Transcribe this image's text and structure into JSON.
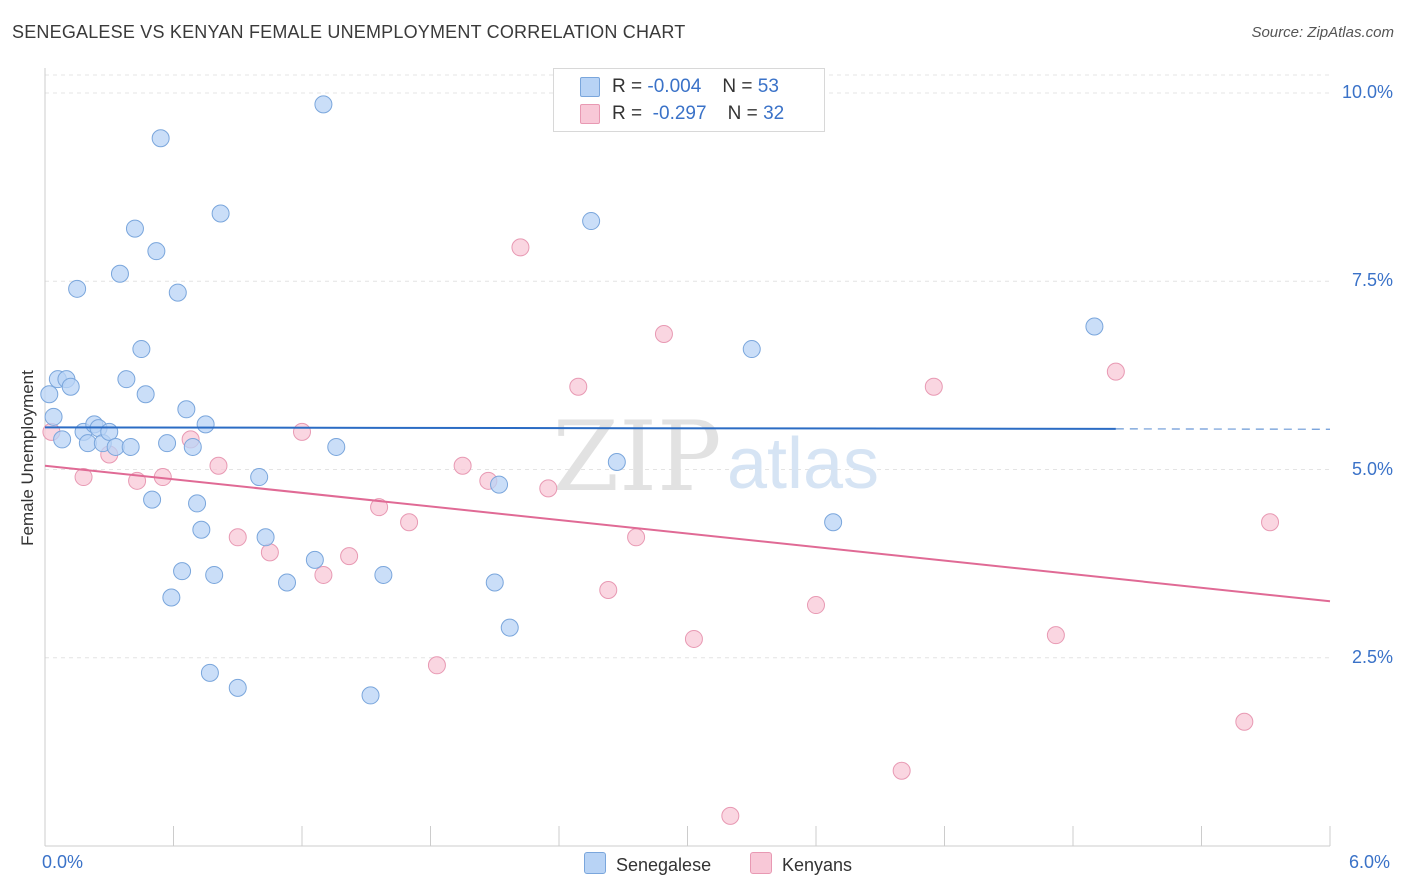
{
  "header": {
    "title": "SENEGALESE VS KENYAN FEMALE UNEMPLOYMENT CORRELATION CHART",
    "source": "Source: ZipAtlas.com"
  },
  "legend": {
    "rows": [
      {
        "r_label": "R =",
        "r_value": "-0.004",
        "n_label": "N =",
        "n_value": "53"
      },
      {
        "r_label": "R =",
        "r_value": "-0.297",
        "n_label": "N =",
        "n_value": "32"
      }
    ]
  },
  "watermark": {
    "zip": "ZIP",
    "atlas": "atlas"
  },
  "colors": {
    "senegalese_fill": "#b8d3f5",
    "senegalese_stroke": "#7aa6dc",
    "senegalese_line": "#2b6cc4",
    "kenyan_fill": "#f8c8d7",
    "kenyan_stroke": "#e899b3",
    "kenyan_line": "#e06a95",
    "tick_label": "#3a72c8"
  },
  "chart_data": {
    "type": "scatter",
    "title": "SENEGALESE VS KENYAN FEMALE UNEMPLOYMENT CORRELATION CHART",
    "xlabel": "",
    "ylabel": "Female Unemployment",
    "xlim": [
      0,
      6
    ],
    "ylim": [
      0,
      10.2
    ],
    "x_tick_labels": [
      "0.0%",
      "6.0%"
    ],
    "y_ticks": [
      2.5,
      5.0,
      7.5,
      10.0
    ],
    "y_tick_labels": [
      "2.5%",
      "5.0%",
      "7.5%",
      "10.0%"
    ],
    "grid": true,
    "legend_position": "top-center",
    "series": [
      {
        "name": "Senegalese",
        "points": [
          [
            0.02,
            6.0
          ],
          [
            0.04,
            5.7
          ],
          [
            0.06,
            6.2
          ],
          [
            0.08,
            5.4
          ],
          [
            0.1,
            6.2
          ],
          [
            0.12,
            6.1
          ],
          [
            0.15,
            7.4
          ],
          [
            0.18,
            5.5
          ],
          [
            0.2,
            5.35
          ],
          [
            0.23,
            5.6
          ],
          [
            0.25,
            5.55
          ],
          [
            0.27,
            5.35
          ],
          [
            0.3,
            5.5
          ],
          [
            0.33,
            5.3
          ],
          [
            0.35,
            7.6
          ],
          [
            0.38,
            6.2
          ],
          [
            0.4,
            5.3
          ],
          [
            0.42,
            8.2
          ],
          [
            0.45,
            6.6
          ],
          [
            0.47,
            6.0
          ],
          [
            0.5,
            4.6
          ],
          [
            0.52,
            7.9
          ],
          [
            0.54,
            9.4
          ],
          [
            0.57,
            5.35
          ],
          [
            0.59,
            3.3
          ],
          [
            0.62,
            7.35
          ],
          [
            0.64,
            3.65
          ],
          [
            0.66,
            5.8
          ],
          [
            0.69,
            5.3
          ],
          [
            0.71,
            4.55
          ],
          [
            0.73,
            4.2
          ],
          [
            0.75,
            5.6
          ],
          [
            0.77,
            2.3
          ],
          [
            0.79,
            3.6
          ],
          [
            0.82,
            8.4
          ],
          [
            0.9,
            2.1
          ],
          [
            1.0,
            4.9
          ],
          [
            1.03,
            4.1
          ],
          [
            1.13,
            3.5
          ],
          [
            1.26,
            3.8
          ],
          [
            1.3,
            9.85
          ],
          [
            1.36,
            5.3
          ],
          [
            1.52,
            2.0
          ],
          [
            1.58,
            3.6
          ],
          [
            2.1,
            3.5
          ],
          [
            2.12,
            4.8
          ],
          [
            2.17,
            2.9
          ],
          [
            2.55,
            8.3
          ],
          [
            2.67,
            5.1
          ],
          [
            2.9,
            10.0
          ],
          [
            3.3,
            6.6
          ],
          [
            3.68,
            4.3
          ],
          [
            4.9,
            6.9
          ]
        ],
        "trend": {
          "x": [
            0,
            5.0
          ],
          "y": [
            5.56,
            5.54
          ],
          "dashed_x": [
            5.0,
            6.0
          ]
        }
      },
      {
        "name": "Kenyans",
        "points": [
          [
            0.03,
            5.5
          ],
          [
            0.18,
            4.9
          ],
          [
            0.3,
            5.2
          ],
          [
            0.43,
            4.85
          ],
          [
            0.55,
            4.9
          ],
          [
            0.68,
            5.4
          ],
          [
            0.81,
            5.05
          ],
          [
            0.9,
            4.1
          ],
          [
            1.05,
            3.9
          ],
          [
            1.2,
            5.5
          ],
          [
            1.3,
            3.6
          ],
          [
            1.42,
            3.85
          ],
          [
            1.56,
            4.5
          ],
          [
            1.7,
            4.3
          ],
          [
            1.83,
            2.4
          ],
          [
            1.95,
            5.05
          ],
          [
            2.07,
            4.85
          ],
          [
            2.22,
            7.95
          ],
          [
            2.35,
            4.75
          ],
          [
            2.49,
            6.1
          ],
          [
            2.63,
            3.4
          ],
          [
            2.76,
            4.1
          ],
          [
            2.89,
            6.8
          ],
          [
            3.03,
            2.75
          ],
          [
            3.2,
            0.4
          ],
          [
            3.6,
            3.2
          ],
          [
            4.0,
            1.0
          ],
          [
            4.15,
            6.1
          ],
          [
            4.72,
            2.8
          ],
          [
            5.0,
            6.3
          ],
          [
            5.6,
            1.65
          ],
          [
            5.72,
            4.3
          ]
        ],
        "trend": {
          "x": [
            0,
            6.0
          ],
          "y": [
            5.05,
            3.25
          ]
        }
      }
    ]
  },
  "bottom_legend": {
    "senegalese": "Senegalese",
    "kenyans": "Kenyans"
  }
}
